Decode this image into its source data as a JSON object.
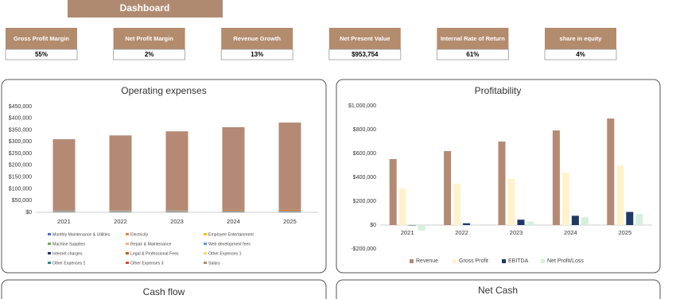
{
  "header": {
    "title": "Dashboard"
  },
  "kpis": [
    {
      "label": "Gross Profit Margin",
      "value": "55%"
    },
    {
      "label": "Net Profit Margin",
      "value": "2%"
    },
    {
      "label": "Revenue Growth",
      "value": "13%"
    },
    {
      "label": "Net Present Value",
      "value": "$953,754"
    },
    {
      "label": "Internal Rate of Return",
      "value": "61%"
    },
    {
      "label": "share in equity",
      "value": "4%"
    }
  ],
  "chart_data": [
    {
      "type": "bar",
      "stacked": true,
      "title": "Operating expenses",
      "categories": [
        "2021",
        "2022",
        "2023",
        "2024",
        "2025"
      ],
      "series": [
        {
          "name": "Monthly Maintenance & Utilities",
          "color": "#4472c4",
          "values": [
            2000,
            2100,
            2200,
            2300,
            2400
          ]
        },
        {
          "name": "Electricity",
          "color": "#ed7d31",
          "values": [
            800,
            850,
            900,
            950,
            1000
          ]
        },
        {
          "name": "Employee Entertainment",
          "color": "#ffc000",
          "values": [
            500,
            520,
            540,
            560,
            580
          ]
        },
        {
          "name": "Machine Supplies",
          "color": "#70ad47",
          "values": [
            600,
            620,
            640,
            660,
            680
          ]
        },
        {
          "name": "Repair & Maintenance",
          "color": "#f4b183",
          "values": [
            500,
            520,
            540,
            560,
            580
          ]
        },
        {
          "name": "Web development fees",
          "color": "#5b9bd5",
          "values": [
            1000,
            1000,
            1000,
            1000,
            1000
          ]
        },
        {
          "name": "Internet charges",
          "color": "#1f3864",
          "values": [
            300,
            310,
            320,
            330,
            340
          ]
        },
        {
          "name": "Legal & Professional Fees",
          "color": "#c55a11",
          "values": [
            400,
            420,
            440,
            3000,
            3200
          ]
        },
        {
          "name": "Other Expenses 1",
          "color": "#ffd966",
          "values": [
            300,
            310,
            320,
            330,
            340
          ]
        },
        {
          "name": "Other Expenses 2",
          "color": "#2e8b8b",
          "values": [
            300,
            310,
            320,
            330,
            340
          ]
        },
        {
          "name": "Other Expenses 3",
          "color": "#e0463c",
          "values": [
            300,
            310,
            320,
            330,
            340
          ]
        },
        {
          "name": "Salary",
          "color": "#b48a74",
          "values": [
            304000,
            320000,
            337000,
            352000,
            371000
          ]
        }
      ],
      "ylim": [
        0,
        450000
      ],
      "yticks": [
        {
          "value": 0,
          "label": "$0"
        },
        {
          "value": 50000,
          "label": "$50,000"
        },
        {
          "value": 100000,
          "label": "$100,000"
        },
        {
          "value": 150000,
          "label": "$150,000"
        },
        {
          "value": 200000,
          "label": "$200,000"
        },
        {
          "value": 250000,
          "label": "$250,000"
        },
        {
          "value": 300000,
          "label": "$300,000"
        },
        {
          "value": 350000,
          "label": "$350,000"
        },
        {
          "value": 400000,
          "label": "$400,000"
        },
        {
          "value": 450000,
          "label": "$450,000"
        }
      ],
      "grid": false,
      "legend": "bottom"
    },
    {
      "type": "bar",
      "stacked": false,
      "title": "Profitability",
      "categories": [
        "2021",
        "2022",
        "2023",
        "2024",
        "2025"
      ],
      "series": [
        {
          "name": "Revenue",
          "color": "#b48a74",
          "values": [
            553000,
            620000,
            700000,
            793000,
            893000
          ]
        },
        {
          "name": "Gross Profit",
          "color": "#fff2cc",
          "values": [
            307000,
            347000,
            387000,
            440000,
            500000
          ]
        },
        {
          "name": "EBITDA",
          "color": "#1f3864",
          "values": [
            -3000,
            15000,
            45000,
            78000,
            110000
          ]
        },
        {
          "name": "Net Profit/Loss",
          "color": "#d5f0dc",
          "values": [
            -47000,
            -5000,
            30000,
            65000,
            93000
          ]
        }
      ],
      "ylim": [
        -200000,
        1000000
      ],
      "yticks": [
        {
          "value": -200000,
          "label": "-$200,000"
        },
        {
          "value": 0,
          "label": "$0"
        },
        {
          "value": 200000,
          "label": "$200,000"
        },
        {
          "value": 400000,
          "label": "$400,000"
        },
        {
          "value": 600000,
          "label": "$600,000"
        },
        {
          "value": 800000,
          "label": "$800,000"
        },
        {
          "value": 1000000,
          "label": "$1,000,000"
        }
      ],
      "grid": false,
      "legend": "bottom"
    }
  ],
  "panels": [
    {
      "title": "Cash flow"
    },
    {
      "title": "Net Cash"
    }
  ]
}
